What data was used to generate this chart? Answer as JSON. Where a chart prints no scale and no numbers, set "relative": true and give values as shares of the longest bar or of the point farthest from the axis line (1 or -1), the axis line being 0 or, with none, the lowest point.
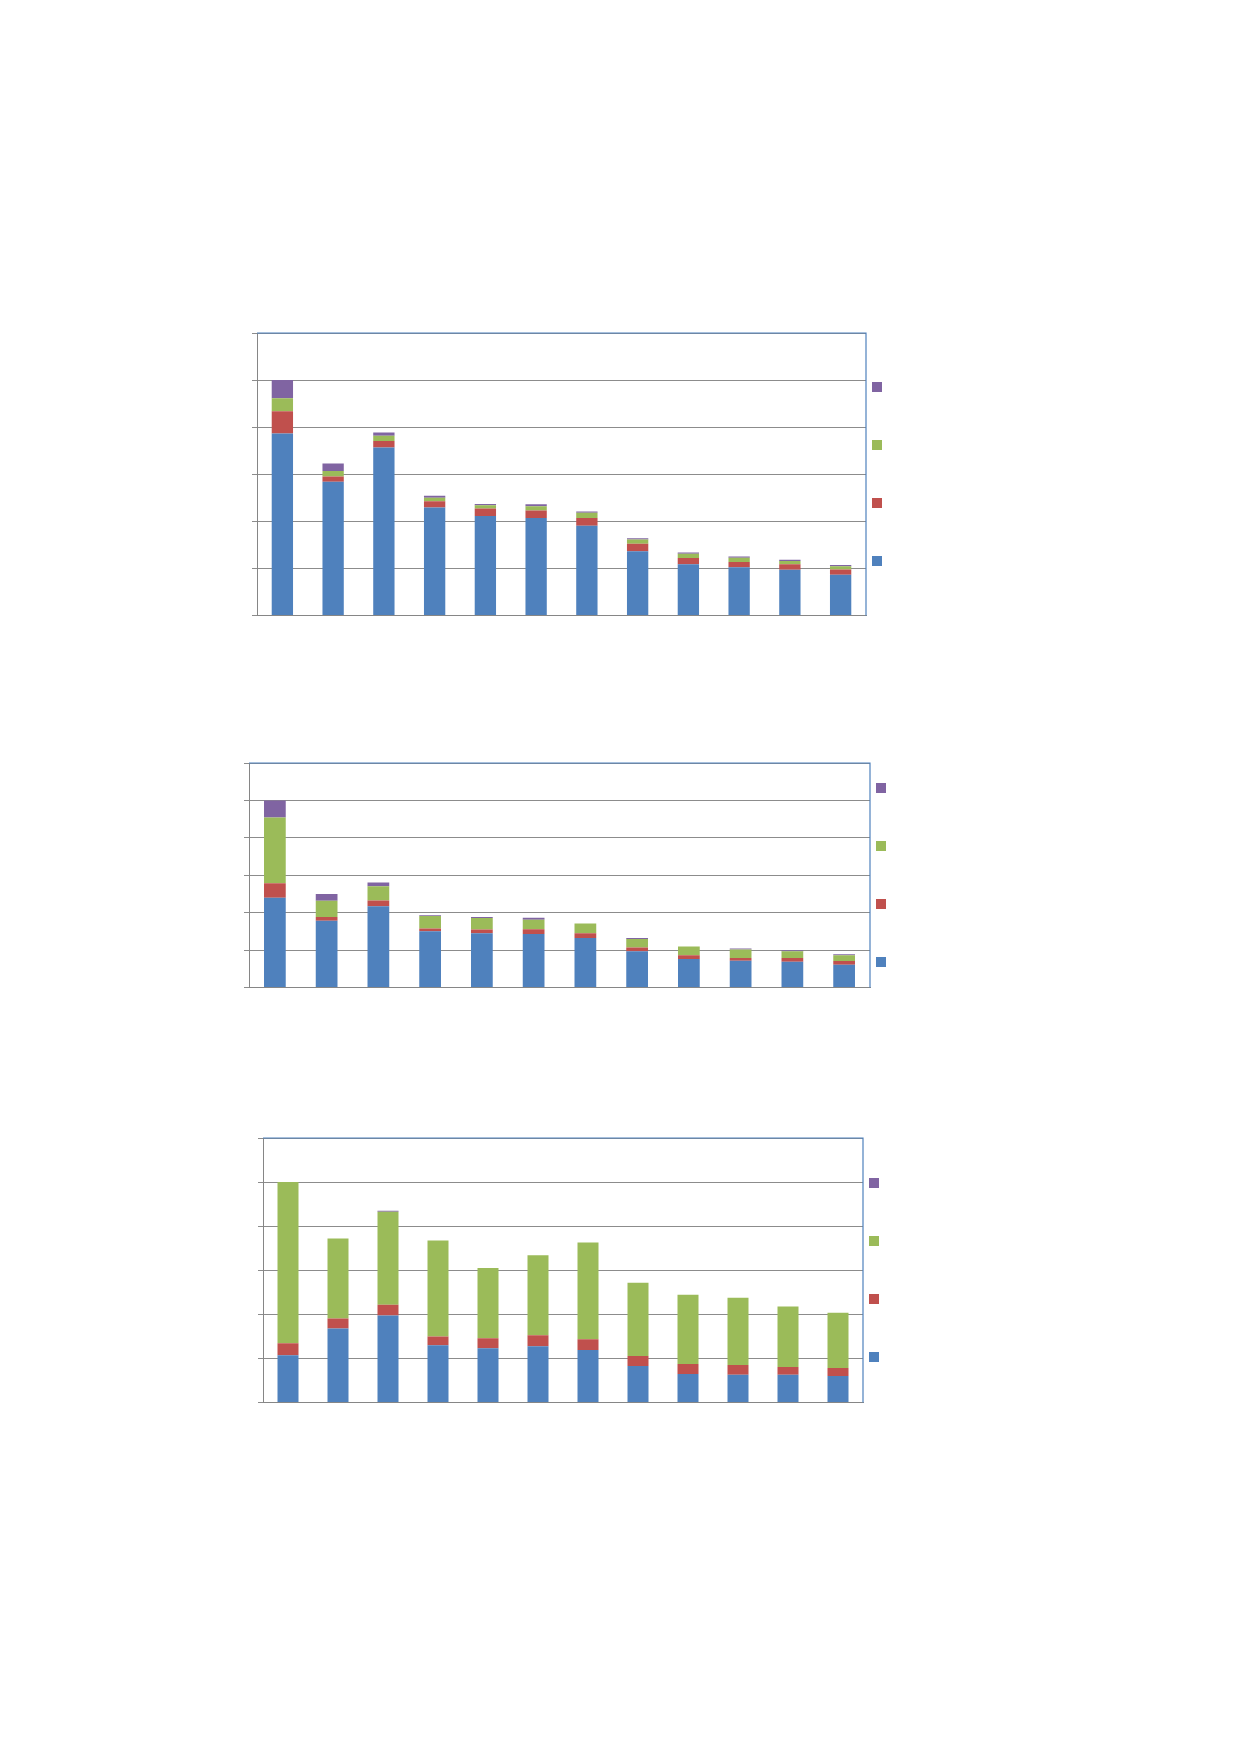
{
  "chart_data": [
    {
      "type": "bar",
      "stacked": true,
      "relative": true,
      "grid": "y",
      "categories": [
        null,
        null,
        null,
        null,
        null,
        null,
        null,
        null,
        null,
        null,
        null,
        null
      ],
      "series": [
        {
          "color": "#4f81bd",
          "values": [
            0.773,
            0.568,
            0.714,
            0.459,
            0.423,
            0.414,
            0.382,
            0.273,
            0.218,
            0.205,
            0.195,
            0.173
          ]
        },
        {
          "color": "#c0504d",
          "values": [
            0.095,
            0.023,
            0.027,
            0.027,
            0.032,
            0.032,
            0.032,
            0.032,
            0.027,
            0.023,
            0.023,
            0.023
          ]
        },
        {
          "color": "#9bbb59",
          "values": [
            0.055,
            0.023,
            0.023,
            0.014,
            0.014,
            0.018,
            0.023,
            0.018,
            0.018,
            0.018,
            0.014,
            0.014
          ]
        },
        {
          "color": "#8064a2",
          "values": [
            0.077,
            0.032,
            0.014,
            0.009,
            0.005,
            0.009,
            0.005,
            0.005,
            0.005,
            0.005,
            0.005,
            0.005
          ]
        }
      ]
    },
    {
      "type": "bar",
      "stacked": true,
      "relative": true,
      "grid": "y",
      "categories": [
        null,
        null,
        null,
        null,
        null,
        null,
        null,
        null,
        null,
        null,
        null,
        null
      ],
      "series": [
        {
          "color": "#4f81bd",
          "values": [
            0.48,
            0.357,
            0.434,
            0.301,
            0.291,
            0.286,
            0.265,
            0.194,
            0.153,
            0.143,
            0.138,
            0.122
          ]
        },
        {
          "color": "#c0504d",
          "values": [
            0.077,
            0.02,
            0.031,
            0.015,
            0.02,
            0.026,
            0.026,
            0.02,
            0.02,
            0.015,
            0.02,
            0.02
          ]
        },
        {
          "color": "#9bbb59",
          "values": [
            0.352,
            0.087,
            0.077,
            0.066,
            0.061,
            0.051,
            0.051,
            0.046,
            0.046,
            0.046,
            0.036,
            0.031
          ]
        },
        {
          "color": "#8064a2",
          "values": [
            0.091,
            0.036,
            0.02,
            0.005,
            0.005,
            0.01,
            null,
            0.005,
            null,
            0.005,
            0.005,
            0.005
          ]
        }
      ]
    },
    {
      "type": "bar",
      "stacked": true,
      "relative": true,
      "grid": "y",
      "categories": [
        null,
        null,
        null,
        null,
        null,
        null,
        null,
        null,
        null,
        null,
        null,
        null
      ],
      "series": [
        {
          "color": "#4f81bd",
          "values": [
            0.215,
            0.336,
            0.395,
            0.26,
            0.247,
            0.256,
            0.238,
            0.166,
            0.13,
            0.126,
            0.126,
            0.121
          ]
        },
        {
          "color": "#c0504d",
          "values": [
            0.054,
            0.045,
            0.049,
            0.04,
            0.045,
            0.049,
            0.049,
            0.045,
            0.045,
            0.045,
            0.036,
            0.036
          ]
        },
        {
          "color": "#9bbb59",
          "values": [
            0.731,
            0.363,
            0.422,
            0.435,
            0.318,
            0.363,
            0.439,
            0.332,
            0.314,
            0.305,
            0.274,
            0.251
          ]
        },
        {
          "color": "#8064a2",
          "values": [
            null,
            null,
            0.004,
            null,
            null,
            null,
            null,
            null,
            null,
            null,
            null,
            null
          ]
        }
      ]
    }
  ]
}
